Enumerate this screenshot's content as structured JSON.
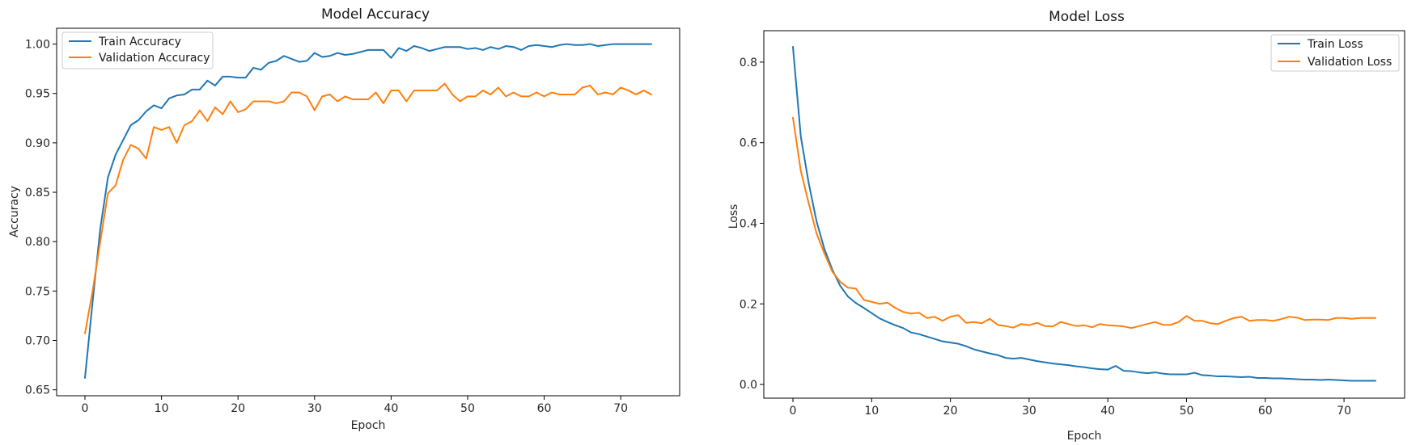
{
  "chart_data": [
    {
      "type": "line",
      "title": "Model Accuracy",
      "xlabel": "Epoch",
      "ylabel": "Accuracy",
      "xlim": [
        -3.7,
        77.7
      ],
      "ylim": [
        0.644,
        1.016
      ],
      "xticks": [
        0,
        10,
        20,
        30,
        40,
        50,
        60,
        70
      ],
      "yticks": [
        0.65,
        0.7,
        0.75,
        0.8,
        0.85,
        0.9,
        0.95,
        1.0
      ],
      "ytick_labels": [
        "0.65",
        "0.70",
        "0.75",
        "0.80",
        "0.85",
        "0.90",
        "0.95",
        "1.00"
      ],
      "legend_position": "upper-left",
      "grid": false,
      "series": [
        {
          "name": "Train Accuracy",
          "color": "#1f77b4",
          "values": [
            0.662,
            0.739,
            0.813,
            0.865,
            0.888,
            0.903,
            0.918,
            0.923,
            0.932,
            0.938,
            0.935,
            0.945,
            0.948,
            0.949,
            0.954,
            0.954,
            0.963,
            0.958,
            0.967,
            0.967,
            0.966,
            0.966,
            0.976,
            0.974,
            0.981,
            0.983,
            0.988,
            0.985,
            0.982,
            0.983,
            0.991,
            0.987,
            0.988,
            0.991,
            0.989,
            0.99,
            0.992,
            0.994,
            0.994,
            0.994,
            0.986,
            0.996,
            0.993,
            0.998,
            0.996,
            0.993,
            0.995,
            0.997,
            0.997,
            0.997,
            0.995,
            0.996,
            0.994,
            0.997,
            0.995,
            0.998,
            0.997,
            0.994,
            0.998,
            0.999,
            0.998,
            0.997,
            0.999,
            1.0,
            0.999,
            0.999,
            1.0,
            0.998,
            0.999,
            1.0,
            1.0,
            1.0,
            1.0,
            1.0,
            1.0
          ]
        },
        {
          "name": "Validation Accuracy",
          "color": "#ff7f0e",
          "values": [
            0.707,
            0.75,
            0.8,
            0.849,
            0.857,
            0.883,
            0.898,
            0.894,
            0.884,
            0.916,
            0.913,
            0.916,
            0.9,
            0.918,
            0.922,
            0.933,
            0.922,
            0.936,
            0.929,
            0.942,
            0.931,
            0.934,
            0.942,
            0.942,
            0.942,
            0.94,
            0.942,
            0.951,
            0.951,
            0.947,
            0.933,
            0.947,
            0.949,
            0.942,
            0.947,
            0.944,
            0.944,
            0.944,
            0.951,
            0.94,
            0.953,
            0.953,
            0.942,
            0.953,
            0.953,
            0.953,
            0.953,
            0.96,
            0.949,
            0.942,
            0.947,
            0.947,
            0.953,
            0.949,
            0.956,
            0.947,
            0.951,
            0.947,
            0.947,
            0.951,
            0.947,
            0.951,
            0.949,
            0.949,
            0.949,
            0.956,
            0.958,
            0.949,
            0.951,
            0.949,
            0.956,
            0.953,
            0.949,
            0.953,
            0.949
          ]
        }
      ]
    },
    {
      "type": "line",
      "title": "Model Loss",
      "xlabel": "Epoch",
      "ylabel": "Loss",
      "xlim": [
        -3.7,
        77.7
      ],
      "ylim": [
        -0.034,
        0.878
      ],
      "xticks": [
        0,
        10,
        20,
        30,
        40,
        50,
        60,
        70
      ],
      "yticks": [
        0.0,
        0.2,
        0.4,
        0.6,
        0.8
      ],
      "ytick_labels": [
        "0.0",
        "0.2",
        "0.4",
        "0.6",
        "0.8"
      ],
      "legend_position": "upper-right",
      "grid": false,
      "series": [
        {
          "name": "Train Loss",
          "color": "#1f77b4",
          "values": [
            0.838,
            0.615,
            0.5,
            0.405,
            0.336,
            0.285,
            0.245,
            0.218,
            0.202,
            0.19,
            0.177,
            0.164,
            0.155,
            0.147,
            0.14,
            0.129,
            0.125,
            0.119,
            0.113,
            0.107,
            0.104,
            0.101,
            0.095,
            0.087,
            0.082,
            0.077,
            0.073,
            0.066,
            0.064,
            0.066,
            0.062,
            0.058,
            0.055,
            0.052,
            0.05,
            0.048,
            0.045,
            0.043,
            0.04,
            0.038,
            0.037,
            0.046,
            0.034,
            0.033,
            0.03,
            0.028,
            0.03,
            0.027,
            0.025,
            0.025,
            0.025,
            0.029,
            0.023,
            0.022,
            0.02,
            0.02,
            0.019,
            0.018,
            0.019,
            0.016,
            0.016,
            0.015,
            0.015,
            0.014,
            0.013,
            0.012,
            0.012,
            0.011,
            0.012,
            0.011,
            0.01,
            0.009,
            0.009,
            0.009,
            0.009
          ]
        },
        {
          "name": "Validation Loss",
          "color": "#ff7f0e",
          "values": [
            0.662,
            0.53,
            0.45,
            0.375,
            0.325,
            0.28,
            0.255,
            0.24,
            0.238,
            0.21,
            0.205,
            0.2,
            0.203,
            0.19,
            0.18,
            0.176,
            0.178,
            0.165,
            0.168,
            0.158,
            0.168,
            0.172,
            0.153,
            0.155,
            0.152,
            0.163,
            0.148,
            0.145,
            0.141,
            0.15,
            0.147,
            0.153,
            0.145,
            0.144,
            0.155,
            0.15,
            0.145,
            0.147,
            0.142,
            0.15,
            0.147,
            0.146,
            0.144,
            0.14,
            0.145,
            0.15,
            0.155,
            0.148,
            0.148,
            0.155,
            0.17,
            0.158,
            0.158,
            0.152,
            0.15,
            0.158,
            0.165,
            0.168,
            0.158,
            0.16,
            0.16,
            0.158,
            0.162,
            0.168,
            0.166,
            0.16,
            0.161,
            0.161,
            0.16,
            0.165,
            0.165,
            0.163,
            0.165,
            0.165,
            0.165
          ]
        }
      ]
    }
  ]
}
